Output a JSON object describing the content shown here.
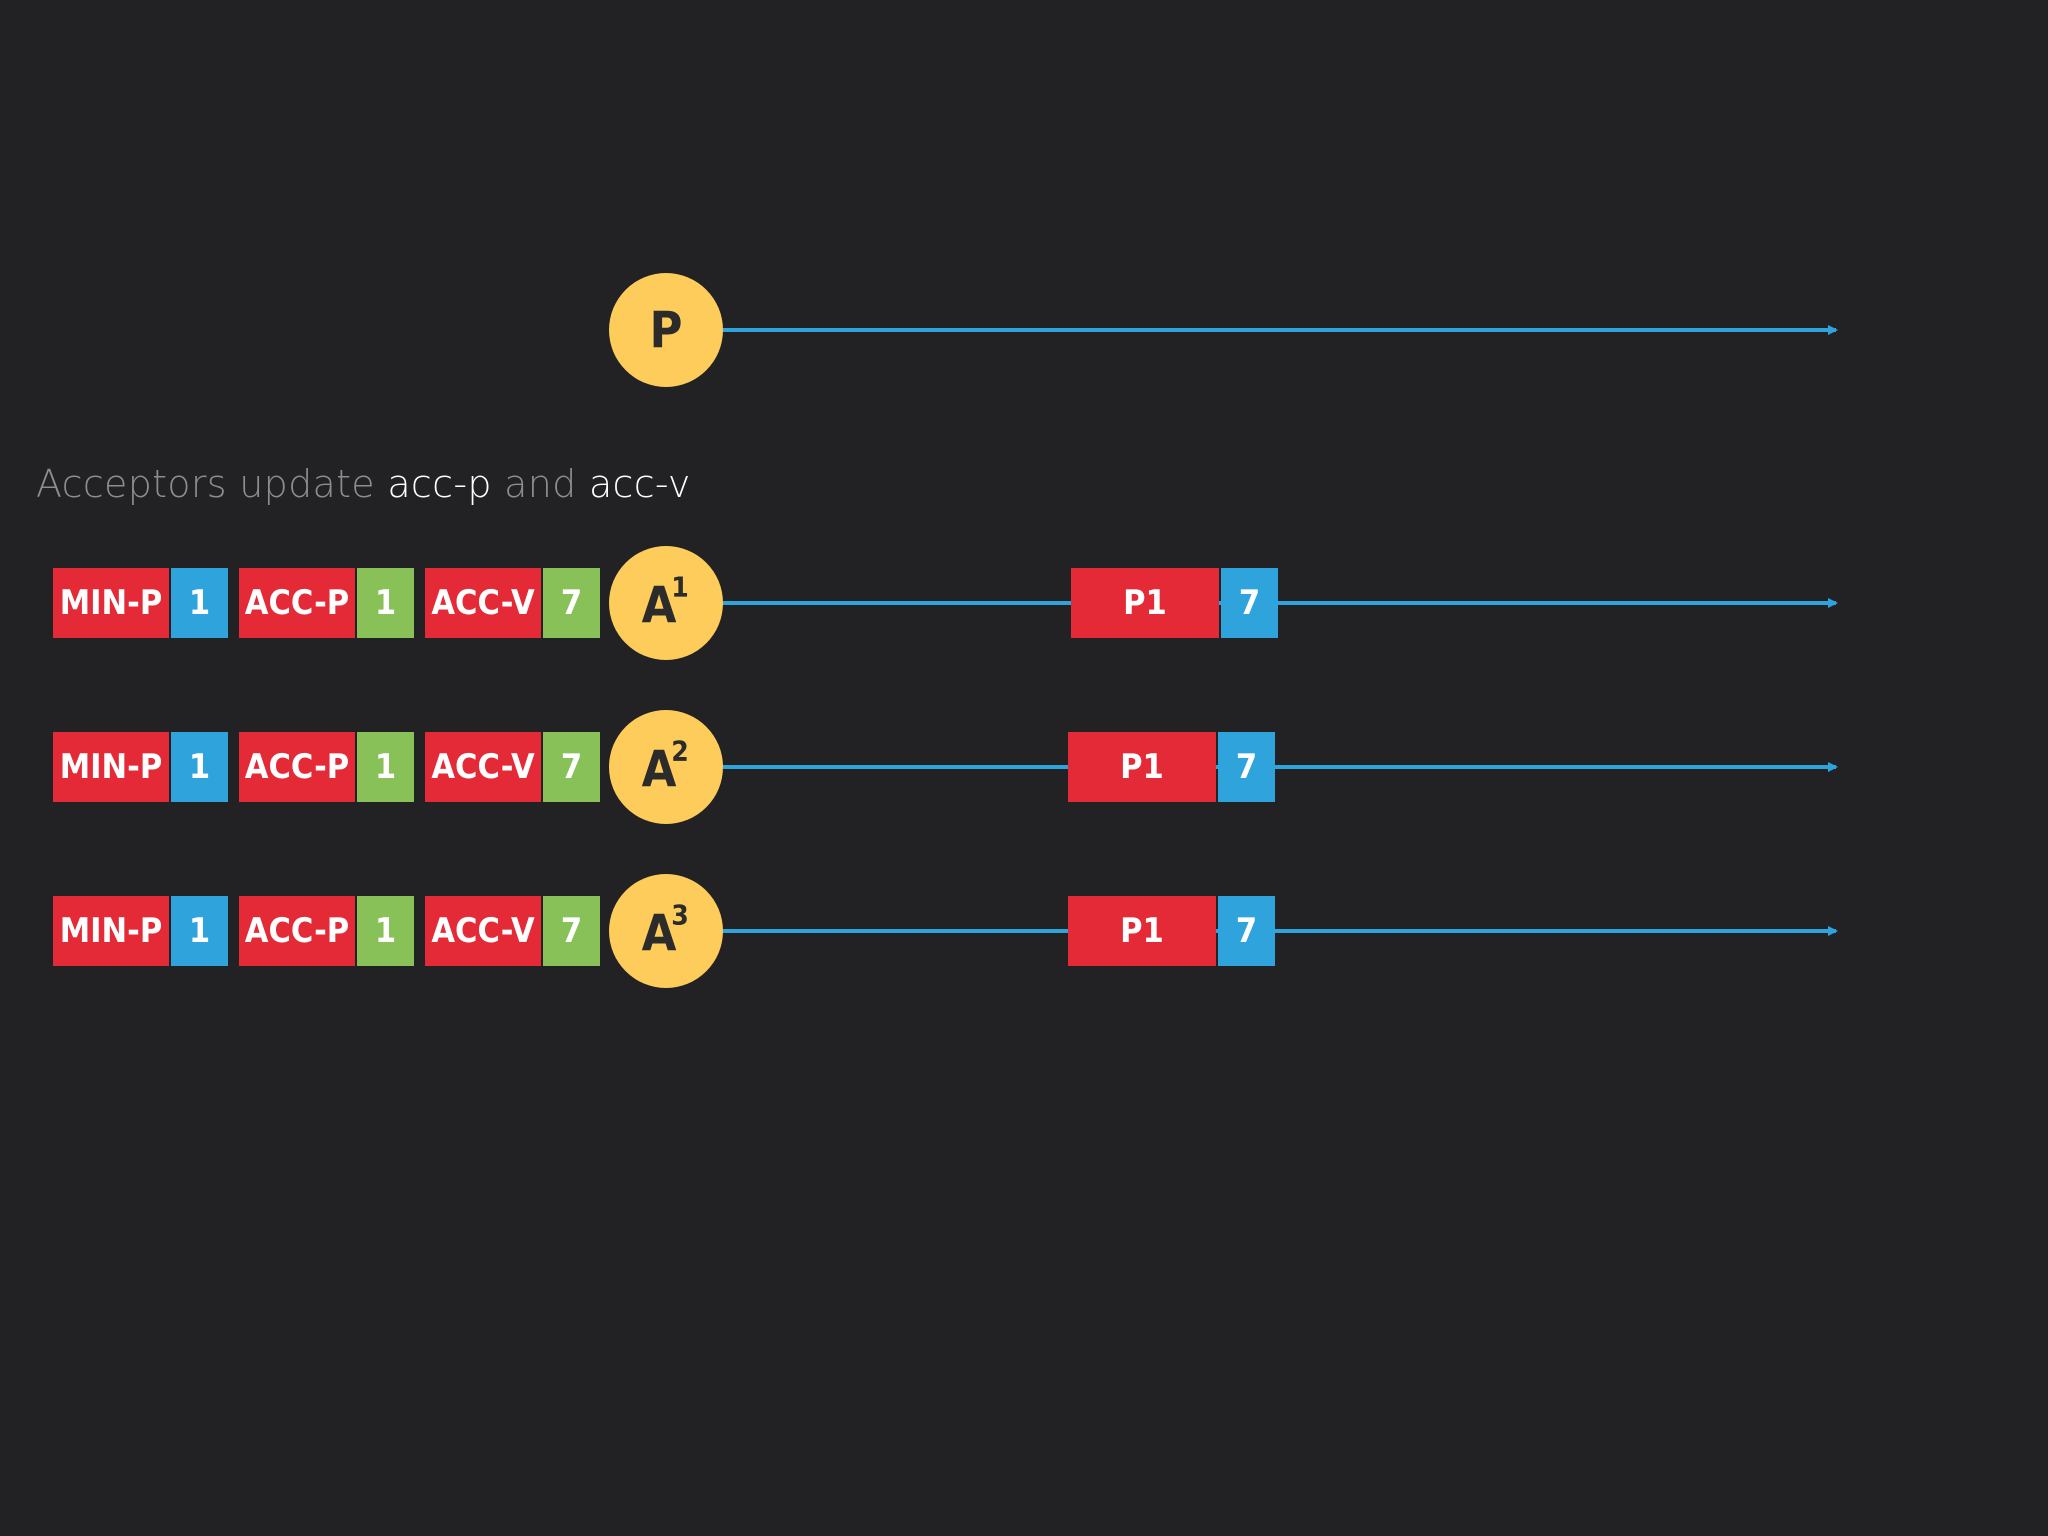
{
  "caption": {
    "prefix": "Acceptors update",
    "term1": "acc-p",
    "middle": "and",
    "term2": "acc-v"
  },
  "proposer": {
    "label": "P"
  },
  "acceptors": [
    {
      "letter": "A",
      "index": "1",
      "state": [
        {
          "label": "MIN-P",
          "value": "1",
          "value_color": "#2ea3dc"
        },
        {
          "label": "ACC-P",
          "value": "1",
          "value_color": "#88c158"
        },
        {
          "label": "ACC-V",
          "value": "7",
          "value_color": "#88c158"
        }
      ],
      "message": {
        "label": "P1",
        "value": "7"
      }
    },
    {
      "letter": "A",
      "index": "2",
      "state": [
        {
          "label": "MIN-P",
          "value": "1",
          "value_color": "#2ea3dc"
        },
        {
          "label": "ACC-P",
          "value": "1",
          "value_color": "#88c158"
        },
        {
          "label": "ACC-V",
          "value": "7",
          "value_color": "#88c158"
        }
      ],
      "message": {
        "label": "P1",
        "value": "7"
      }
    },
    {
      "letter": "A",
      "index": "3",
      "state": [
        {
          "label": "MIN-P",
          "value": "1",
          "value_color": "#2ea3dc"
        },
        {
          "label": "ACC-P",
          "value": "1",
          "value_color": "#88c158"
        },
        {
          "label": "ACC-V",
          "value": "7",
          "value_color": "#88c158"
        }
      ],
      "message": {
        "label": "P1",
        "value": "7"
      }
    }
  ],
  "colors": {
    "background": "#222224",
    "node": "#fecc5a",
    "node_text": "#2b2b2b",
    "label_box": "#e42a36",
    "timeline": "#2ea3dc",
    "box_text": "#ffffff"
  }
}
